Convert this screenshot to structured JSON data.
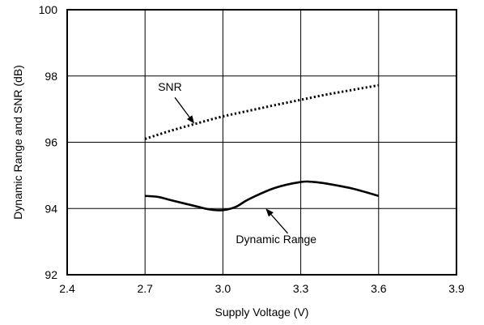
{
  "chart_data": {
    "type": "line",
    "title": "",
    "xlabel": "Supply Voltage (V)",
    "ylabel": "Dynamic Range and SNR (dB)",
    "xlim": [
      2.4,
      3.9
    ],
    "ylim": [
      92,
      100
    ],
    "x_ticks": [
      "2.4",
      "2.7",
      "3.0",
      "3.3",
      "3.6",
      "3.9"
    ],
    "y_ticks": [
      "92",
      "94",
      "96",
      "98",
      "100"
    ],
    "grid": true,
    "series": [
      {
        "name": "SNR",
        "style": "dotted",
        "x": [
          2.7,
          2.8,
          2.9,
          3.0,
          3.1,
          3.2,
          3.3,
          3.4,
          3.5,
          3.6
        ],
        "y": [
          96.1,
          96.35,
          96.57,
          96.78,
          96.95,
          97.12,
          97.28,
          97.44,
          97.58,
          97.72
        ]
      },
      {
        "name": "Dynamic Range",
        "style": "solid",
        "x": [
          2.7,
          2.75,
          2.8,
          2.9,
          2.95,
          3.0,
          3.05,
          3.1,
          3.2,
          3.3,
          3.35,
          3.4,
          3.5,
          3.6
        ],
        "y": [
          94.38,
          94.35,
          94.25,
          94.06,
          93.97,
          93.95,
          94.05,
          94.28,
          94.62,
          94.8,
          94.8,
          94.75,
          94.6,
          94.38
        ]
      }
    ],
    "annotations": [
      {
        "text": "SNR",
        "series": "SNR"
      },
      {
        "text": "Dynamic Range",
        "series": "Dynamic Range"
      }
    ]
  }
}
